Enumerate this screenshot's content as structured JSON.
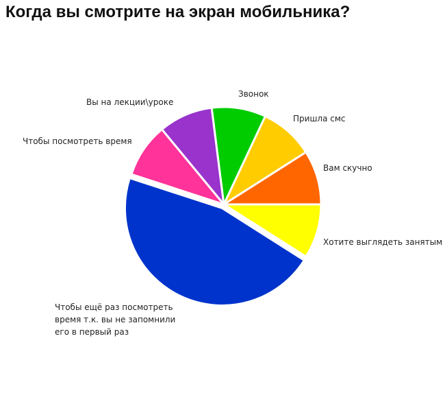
{
  "chart_data": {
    "type": "pie",
    "title": "Когда вы смотрите на экран мобильника?",
    "slices": [
      {
        "label": "Хотите выглядеть занятым",
        "value": 9,
        "color": "#ffff00"
      },
      {
        "label": "Чтобы ещё раз посмотреть время т.к. вы не запомнили его в первый раз",
        "label_lines": [
          "Чтобы ещё раз посмотреть",
          "время т.к. вы не запомнили",
          "его в первый раз"
        ],
        "value": 46,
        "color": "#0033cc"
      },
      {
        "label": "Чтобы посмотреть время",
        "value": 9,
        "color": "#ff3399"
      },
      {
        "label": "Вы на лекции\\уроке",
        "value": 9,
        "color": "#9933cc"
      },
      {
        "label": "Звонок",
        "value": 9,
        "color": "#00cc00"
      },
      {
        "label": "Пришла смс",
        "value": 9,
        "color": "#ffcc00"
      },
      {
        "label": "Вам скучно",
        "value": 9,
        "color": "#ff6600"
      }
    ]
  }
}
